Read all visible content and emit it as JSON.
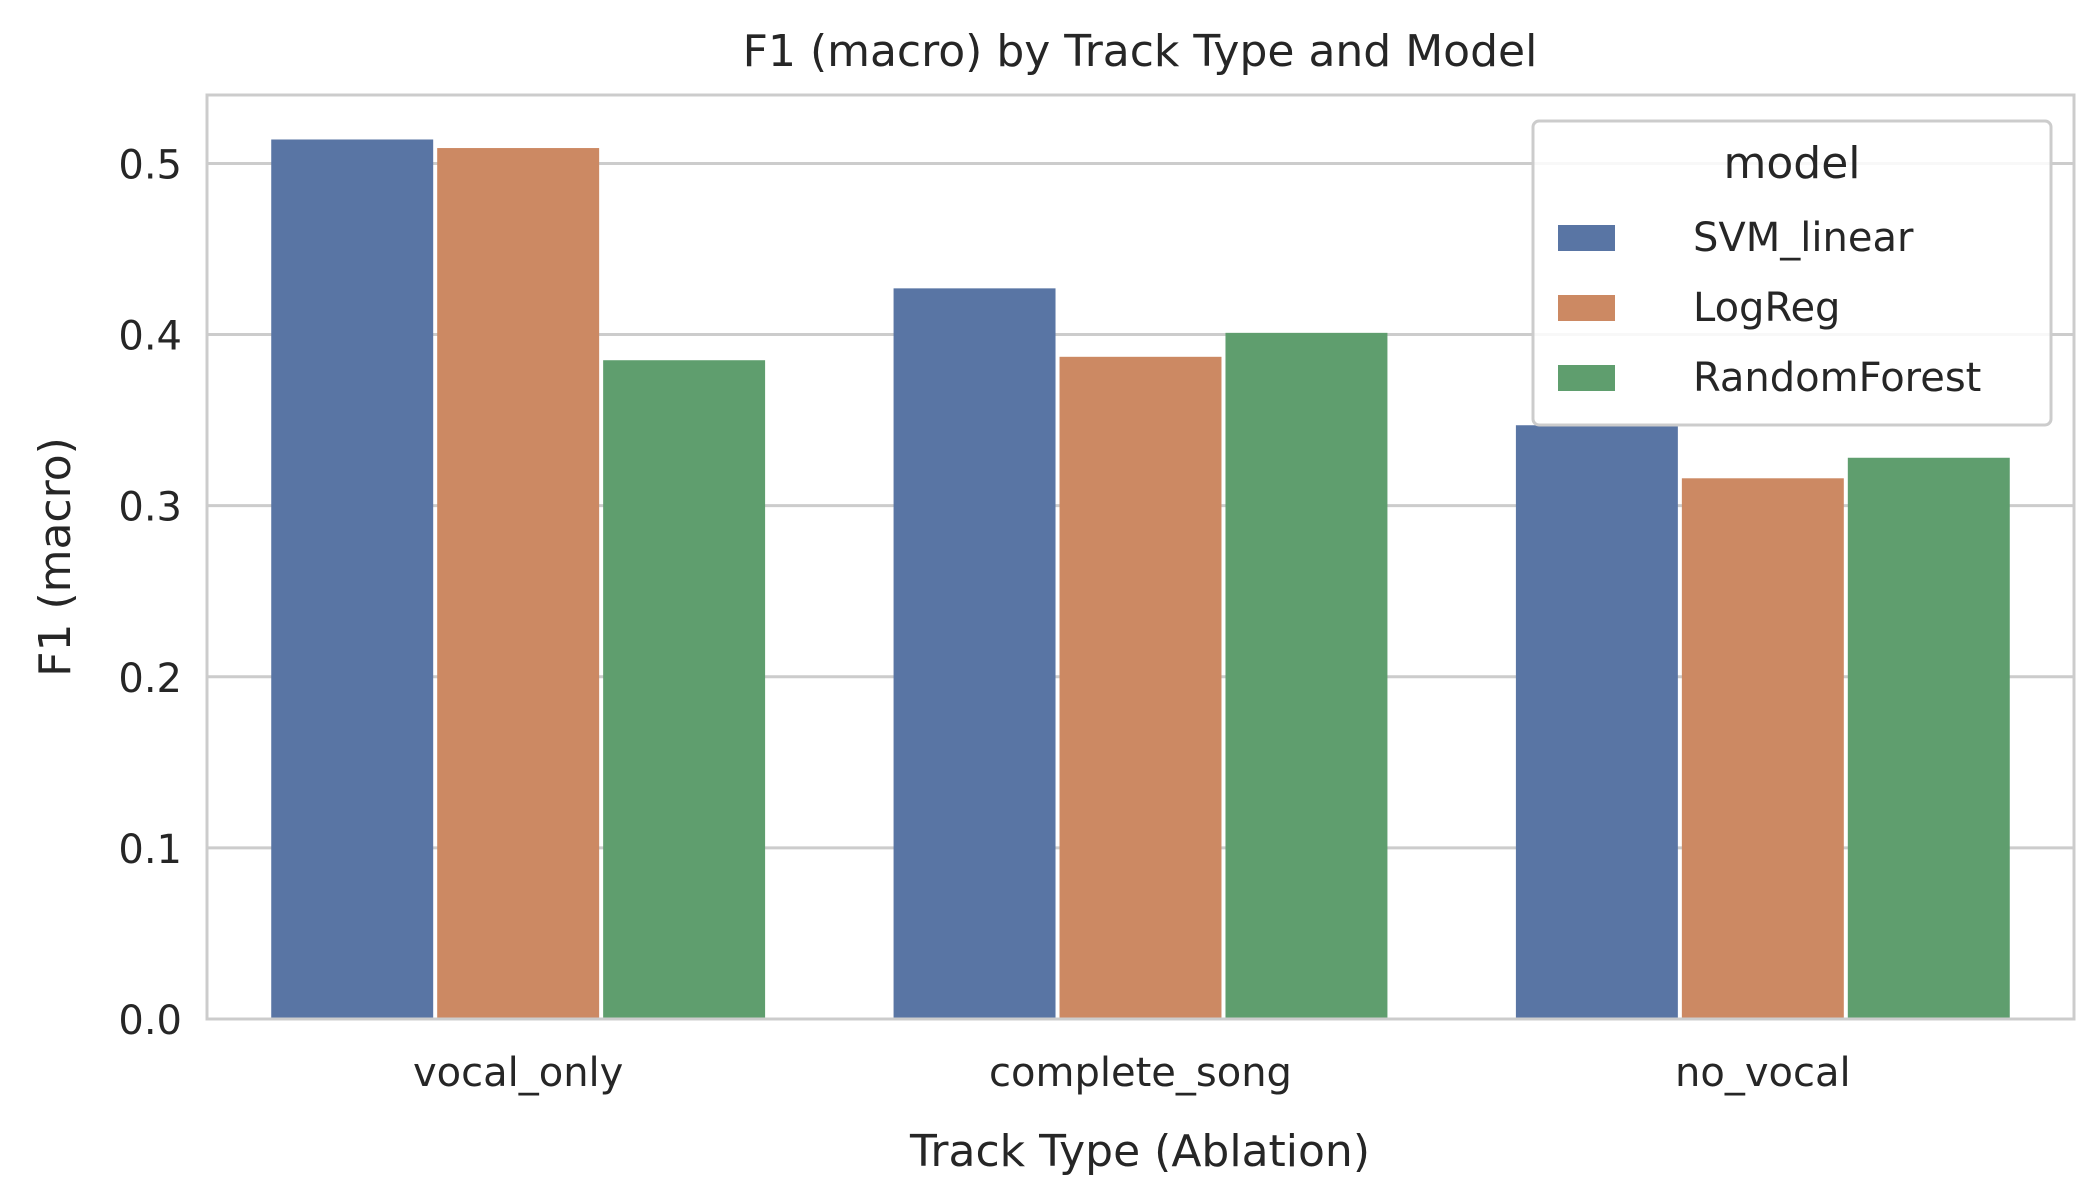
{
  "chart_data": {
    "type": "bar",
    "title": "F1 (macro) by Track Type and Model",
    "xlabel": "Track Type (Ablation)",
    "ylabel": "F1 (macro)",
    "categories": [
      "vocal_only",
      "complete_song",
      "no_vocal"
    ],
    "ylim": [
      0,
      0.54
    ],
    "yticks": [
      0.0,
      0.1,
      0.2,
      0.3,
      0.4,
      0.5
    ],
    "ytick_labels": [
      "0.0",
      "0.1",
      "0.2",
      "0.3",
      "0.4",
      "0.5"
    ],
    "grid": true,
    "legend": {
      "title": "model",
      "placement": "top-right"
    },
    "series": [
      {
        "name": "SVM_linear",
        "color": "#5975a4",
        "values": [
          0.514,
          0.427,
          0.347
        ]
      },
      {
        "name": "LogReg",
        "color": "#cc8963",
        "values": [
          0.509,
          0.387,
          0.316
        ]
      },
      {
        "name": "RandomForest",
        "color": "#5f9e6e",
        "values": [
          0.385,
          0.401,
          0.328
        ]
      }
    ]
  }
}
